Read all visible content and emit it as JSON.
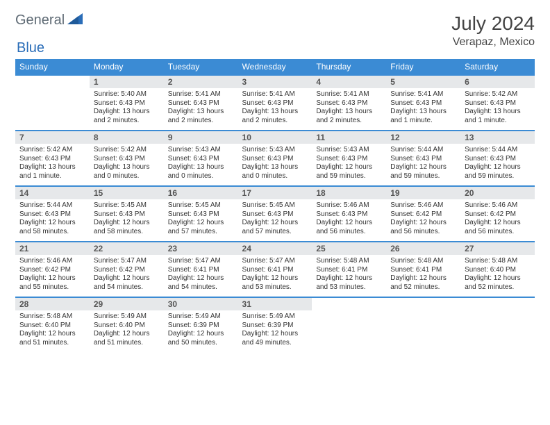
{
  "brand": {
    "part1": "General",
    "part2": "Blue"
  },
  "header": {
    "month": "July 2024",
    "location": "Verapaz, Mexico"
  },
  "colors": {
    "header_bg": "#3b8bd4",
    "header_text": "#ffffff",
    "daynum_bg": "#e6e8ea",
    "row_divider": "#3b8bd4",
    "logo_gray": "#5f6b75",
    "logo_blue": "#2a6db8",
    "text": "#333333",
    "background": "#ffffff"
  },
  "typography": {
    "month_fontsize": 28,
    "location_fontsize": 16,
    "weekday_fontsize": 12,
    "daynum_fontsize": 12,
    "body_fontsize": 10
  },
  "weekdays": [
    "Sunday",
    "Monday",
    "Tuesday",
    "Wednesday",
    "Thursday",
    "Friday",
    "Saturday"
  ],
  "weeks": [
    [
      {
        "n": "",
        "sr": "",
        "ss": "",
        "dl": ""
      },
      {
        "n": "1",
        "sr": "Sunrise: 5:40 AM",
        "ss": "Sunset: 6:43 PM",
        "dl": "Daylight: 13 hours and 2 minutes."
      },
      {
        "n": "2",
        "sr": "Sunrise: 5:41 AM",
        "ss": "Sunset: 6:43 PM",
        "dl": "Daylight: 13 hours and 2 minutes."
      },
      {
        "n": "3",
        "sr": "Sunrise: 5:41 AM",
        "ss": "Sunset: 6:43 PM",
        "dl": "Daylight: 13 hours and 2 minutes."
      },
      {
        "n": "4",
        "sr": "Sunrise: 5:41 AM",
        "ss": "Sunset: 6:43 PM",
        "dl": "Daylight: 13 hours and 2 minutes."
      },
      {
        "n": "5",
        "sr": "Sunrise: 5:41 AM",
        "ss": "Sunset: 6:43 PM",
        "dl": "Daylight: 13 hours and 1 minute."
      },
      {
        "n": "6",
        "sr": "Sunrise: 5:42 AM",
        "ss": "Sunset: 6:43 PM",
        "dl": "Daylight: 13 hours and 1 minute."
      }
    ],
    [
      {
        "n": "7",
        "sr": "Sunrise: 5:42 AM",
        "ss": "Sunset: 6:43 PM",
        "dl": "Daylight: 13 hours and 1 minute."
      },
      {
        "n": "8",
        "sr": "Sunrise: 5:42 AM",
        "ss": "Sunset: 6:43 PM",
        "dl": "Daylight: 13 hours and 0 minutes."
      },
      {
        "n": "9",
        "sr": "Sunrise: 5:43 AM",
        "ss": "Sunset: 6:43 PM",
        "dl": "Daylight: 13 hours and 0 minutes."
      },
      {
        "n": "10",
        "sr": "Sunrise: 5:43 AM",
        "ss": "Sunset: 6:43 PM",
        "dl": "Daylight: 13 hours and 0 minutes."
      },
      {
        "n": "11",
        "sr": "Sunrise: 5:43 AM",
        "ss": "Sunset: 6:43 PM",
        "dl": "Daylight: 12 hours and 59 minutes."
      },
      {
        "n": "12",
        "sr": "Sunrise: 5:44 AM",
        "ss": "Sunset: 6:43 PM",
        "dl": "Daylight: 12 hours and 59 minutes."
      },
      {
        "n": "13",
        "sr": "Sunrise: 5:44 AM",
        "ss": "Sunset: 6:43 PM",
        "dl": "Daylight: 12 hours and 59 minutes."
      }
    ],
    [
      {
        "n": "14",
        "sr": "Sunrise: 5:44 AM",
        "ss": "Sunset: 6:43 PM",
        "dl": "Daylight: 12 hours and 58 minutes."
      },
      {
        "n": "15",
        "sr": "Sunrise: 5:45 AM",
        "ss": "Sunset: 6:43 PM",
        "dl": "Daylight: 12 hours and 58 minutes."
      },
      {
        "n": "16",
        "sr": "Sunrise: 5:45 AM",
        "ss": "Sunset: 6:43 PM",
        "dl": "Daylight: 12 hours and 57 minutes."
      },
      {
        "n": "17",
        "sr": "Sunrise: 5:45 AM",
        "ss": "Sunset: 6:43 PM",
        "dl": "Daylight: 12 hours and 57 minutes."
      },
      {
        "n": "18",
        "sr": "Sunrise: 5:46 AM",
        "ss": "Sunset: 6:43 PM",
        "dl": "Daylight: 12 hours and 56 minutes."
      },
      {
        "n": "19",
        "sr": "Sunrise: 5:46 AM",
        "ss": "Sunset: 6:42 PM",
        "dl": "Daylight: 12 hours and 56 minutes."
      },
      {
        "n": "20",
        "sr": "Sunrise: 5:46 AM",
        "ss": "Sunset: 6:42 PM",
        "dl": "Daylight: 12 hours and 56 minutes."
      }
    ],
    [
      {
        "n": "21",
        "sr": "Sunrise: 5:46 AM",
        "ss": "Sunset: 6:42 PM",
        "dl": "Daylight: 12 hours and 55 minutes."
      },
      {
        "n": "22",
        "sr": "Sunrise: 5:47 AM",
        "ss": "Sunset: 6:42 PM",
        "dl": "Daylight: 12 hours and 54 minutes."
      },
      {
        "n": "23",
        "sr": "Sunrise: 5:47 AM",
        "ss": "Sunset: 6:41 PM",
        "dl": "Daylight: 12 hours and 54 minutes."
      },
      {
        "n": "24",
        "sr": "Sunrise: 5:47 AM",
        "ss": "Sunset: 6:41 PM",
        "dl": "Daylight: 12 hours and 53 minutes."
      },
      {
        "n": "25",
        "sr": "Sunrise: 5:48 AM",
        "ss": "Sunset: 6:41 PM",
        "dl": "Daylight: 12 hours and 53 minutes."
      },
      {
        "n": "26",
        "sr": "Sunrise: 5:48 AM",
        "ss": "Sunset: 6:41 PM",
        "dl": "Daylight: 12 hours and 52 minutes."
      },
      {
        "n": "27",
        "sr": "Sunrise: 5:48 AM",
        "ss": "Sunset: 6:40 PM",
        "dl": "Daylight: 12 hours and 52 minutes."
      }
    ],
    [
      {
        "n": "28",
        "sr": "Sunrise: 5:48 AM",
        "ss": "Sunset: 6:40 PM",
        "dl": "Daylight: 12 hours and 51 minutes."
      },
      {
        "n": "29",
        "sr": "Sunrise: 5:49 AM",
        "ss": "Sunset: 6:40 PM",
        "dl": "Daylight: 12 hours and 51 minutes."
      },
      {
        "n": "30",
        "sr": "Sunrise: 5:49 AM",
        "ss": "Sunset: 6:39 PM",
        "dl": "Daylight: 12 hours and 50 minutes."
      },
      {
        "n": "31",
        "sr": "Sunrise: 5:49 AM",
        "ss": "Sunset: 6:39 PM",
        "dl": "Daylight: 12 hours and 49 minutes."
      },
      {
        "n": "",
        "sr": "",
        "ss": "",
        "dl": ""
      },
      {
        "n": "",
        "sr": "",
        "ss": "",
        "dl": ""
      },
      {
        "n": "",
        "sr": "",
        "ss": "",
        "dl": ""
      }
    ]
  ]
}
